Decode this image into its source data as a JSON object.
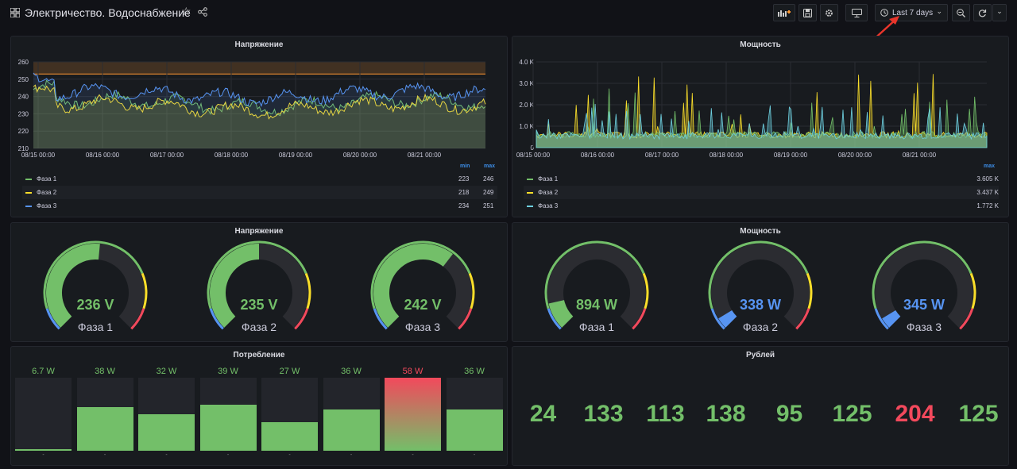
{
  "header": {
    "title": "Электричество. Водоснабжение",
    "time_range": "Last 7 days"
  },
  "voltage_chart": {
    "title": "Напряжение",
    "chart_data": {
      "type": "line",
      "yticks": [
        "260",
        "250",
        "240",
        "230",
        "220",
        "210"
      ],
      "xticks": [
        "08/15 00:00",
        "08/16 00:00",
        "08/17 00:00",
        "08/18 00:00",
        "08/19 00:00",
        "08/20 00:00",
        "08/21 00:00"
      ],
      "ylim": [
        210,
        260
      ],
      "threshold": 253
    },
    "legend": {
      "hdr_min": "min",
      "hdr_max": "max",
      "rows": [
        {
          "name": "Фаза 1",
          "min": "223",
          "max": "246",
          "color": "#73bf69"
        },
        {
          "name": "Фаза 2",
          "min": "218",
          "max": "249",
          "color": "#fade2a"
        },
        {
          "name": "Фаза 3",
          "min": "234",
          "max": "251",
          "color": "#5794f2"
        }
      ]
    }
  },
  "power_chart": {
    "title": "Мощность",
    "chart_data": {
      "type": "area",
      "yticks": [
        "4.0 K",
        "3.0 K",
        "2.0 K",
        "1.0 K",
        "0"
      ],
      "xticks": [
        "08/15 00:00",
        "08/16 00:00",
        "08/17 00:00",
        "08/18 00:00",
        "08/19 00:00",
        "08/20 00:00",
        "08/21 00:00"
      ],
      "ylim": [
        0,
        4000
      ]
    },
    "legend": {
      "hdr_max": "max",
      "rows": [
        {
          "name": "Фаза 1",
          "max": "3.605 K",
          "color": "#73bf69"
        },
        {
          "name": "Фаза 2",
          "max": "3.437 K",
          "color": "#fade2a"
        },
        {
          "name": "Фаза 3",
          "max": "1.772 K",
          "color": "#6ed0e0"
        }
      ]
    }
  },
  "voltage_gauges": {
    "title": "Напряжение",
    "items": [
      {
        "value": "236 V",
        "label": "Фаза 1",
        "fraction": 0.52,
        "color": "#73bf69"
      },
      {
        "value": "235 V",
        "label": "Фаза 2",
        "fraction": 0.5,
        "color": "#73bf69"
      },
      {
        "value": "242 V",
        "label": "Фаза 3",
        "fraction": 0.64,
        "color": "#73bf69"
      }
    ]
  },
  "power_gauges": {
    "title": "Мощность",
    "items": [
      {
        "value": "894 W",
        "label": "Фаза 1",
        "fraction": 0.12,
        "color": "#73bf69"
      },
      {
        "value": "338 W",
        "label": "Фаза 2",
        "fraction": 0.05,
        "color": "#5794f2"
      },
      {
        "value": "345 W",
        "label": "Фаза 3",
        "fraction": 0.05,
        "color": "#5794f2"
      }
    ]
  },
  "consumption": {
    "title": "Потребление",
    "bars": [
      {
        "value": "6.7 W",
        "level": 0.02,
        "color": "#73bf69",
        "dash": "-"
      },
      {
        "value": "38 W",
        "level": 0.6,
        "color": "#73bf69",
        "dash": "-"
      },
      {
        "value": "32 W",
        "level": 0.5,
        "color": "#73bf69",
        "dash": "-"
      },
      {
        "value": "39 W",
        "level": 0.63,
        "color": "#73bf69",
        "dash": "-"
      },
      {
        "value": "27 W",
        "level": 0.39,
        "color": "#73bf69",
        "dash": "-"
      },
      {
        "value": "36 W",
        "level": 0.56,
        "color": "#73bf69",
        "dash": "-"
      },
      {
        "value": "58 W",
        "level": 1.0,
        "color": "#f2495c",
        "dash": "-"
      },
      {
        "value": "36 W",
        "level": 0.56,
        "color": "#73bf69",
        "dash": "-"
      }
    ]
  },
  "rubles": {
    "title": "Рублей",
    "values": [
      {
        "value": "24",
        "color": "#73bf69"
      },
      {
        "value": "133",
        "color": "#73bf69"
      },
      {
        "value": "113",
        "color": "#73bf69"
      },
      {
        "value": "138",
        "color": "#73bf69"
      },
      {
        "value": "95",
        "color": "#73bf69"
      },
      {
        "value": "125",
        "color": "#73bf69"
      },
      {
        "value": "204",
        "color": "#f2495c"
      },
      {
        "value": "125",
        "color": "#73bf69"
      }
    ]
  }
}
